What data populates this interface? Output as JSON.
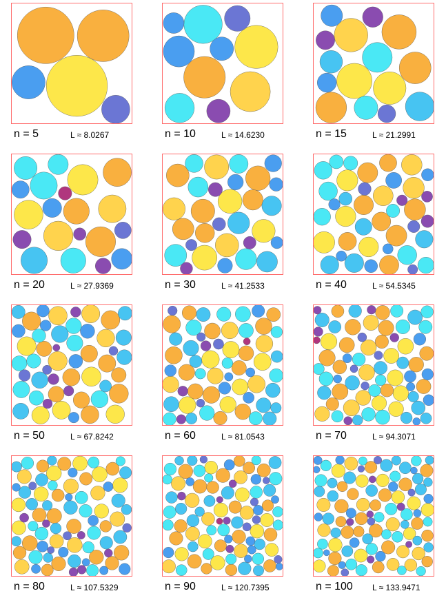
{
  "colors": {
    "frame": "#ff6b6b",
    "palette": [
      "#fde74a",
      "#f9b03f",
      "#ffd34d",
      "#4ae8f5",
      "#47c4f2",
      "#4a9ef0",
      "#6b76d4",
      "#8a4cb0",
      "#b0367e",
      "#d8294f"
    ]
  },
  "panels": [
    {
      "n_label": "n = 5",
      "l_label": "L ≈ 8.0267",
      "n": 5
    },
    {
      "n_label": "n = 10",
      "l_label": "L ≈ 14.6230",
      "n": 10
    },
    {
      "n_label": "n = 15",
      "l_label": "L ≈ 21.2991",
      "n": 15
    },
    {
      "n_label": "n = 20",
      "l_label": "L ≈ 27.9369",
      "n": 20
    },
    {
      "n_label": "n = 30",
      "l_label": "L ≈ 41.2533",
      "n": 30
    },
    {
      "n_label": "n = 40",
      "l_label": "L ≈ 54.5345",
      "n": 40
    },
    {
      "n_label": "n = 50",
      "l_label": "L ≈ 67.8242",
      "n": 50
    },
    {
      "n_label": "n = 60",
      "l_label": "L ≈ 81.0543",
      "n": 60
    },
    {
      "n_label": "n = 70",
      "l_label": "L ≈ 94.3071",
      "n": 70
    },
    {
      "n_label": "n = 80",
      "l_label": "L ≈ 107.5329",
      "n": 80
    },
    {
      "n_label": "n = 90",
      "l_label": "L ≈ 120.7395",
      "n": 90
    },
    {
      "n_label": "n = 100",
      "l_label": "L ≈ 133.9471",
      "n": 100
    }
  ]
}
